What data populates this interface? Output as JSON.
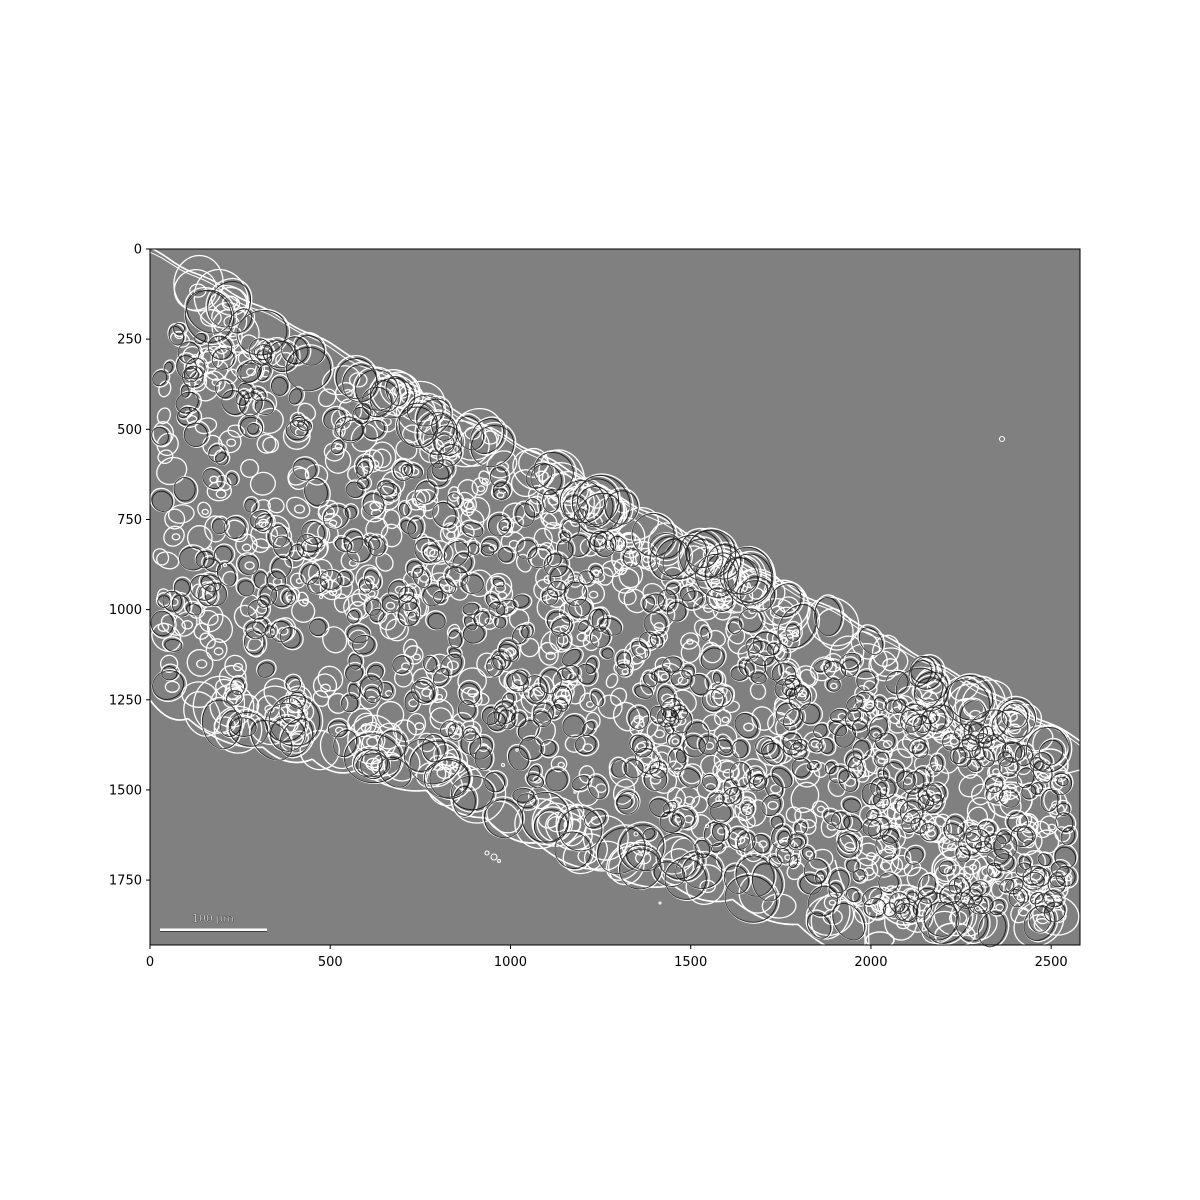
{
  "image": {
    "background_color": "#808080",
    "edge_color": "#ffffff",
    "dark_edge_color": "#000000",
    "extent": {
      "x": [
        0,
        2580
      ],
      "y": [
        1930,
        0
      ]
    }
  },
  "axes": {
    "x_ticks": [
      {
        "value": 0,
        "label": "0"
      },
      {
        "value": 500,
        "label": "500"
      },
      {
        "value": 1000,
        "label": "1000"
      },
      {
        "value": 1500,
        "label": "1500"
      },
      {
        "value": 2000,
        "label": "2000"
      },
      {
        "value": 2500,
        "label": "2500"
      }
    ],
    "y_ticks": [
      {
        "value": 0,
        "label": "0"
      },
      {
        "value": 250,
        "label": "250"
      },
      {
        "value": 500,
        "label": "500"
      },
      {
        "value": 750,
        "label": "750"
      },
      {
        "value": 1000,
        "label": "1000"
      },
      {
        "value": 1250,
        "label": "1250"
      },
      {
        "value": 1500,
        "label": "1500"
      },
      {
        "value": 1750,
        "label": "1750"
      }
    ]
  },
  "scale_bar": {
    "label": "100 µm"
  }
}
